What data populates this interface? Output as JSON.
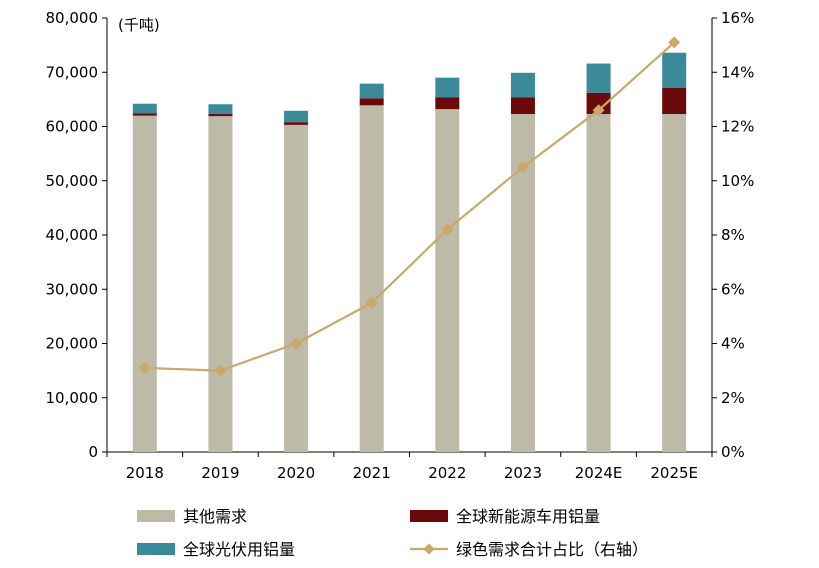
{
  "chart_data": {
    "type": "bar",
    "stacked": true,
    "unit_label": "(千吨)",
    "categories": [
      "2018",
      "2019",
      "2020",
      "2021",
      "2022",
      "2023",
      "2024E",
      "2025E"
    ],
    "series": [
      {
        "name": "其他需求",
        "type": "bar",
        "axis": "left",
        "color": "#bdbaa7",
        "values": [
          62000,
          61900,
          60300,
          63900,
          63200,
          62300,
          62300,
          62300
        ]
      },
      {
        "name": "全球新能源车用铝量",
        "type": "bar",
        "axis": "left",
        "color": "#6b0a0a",
        "values": [
          400,
          400,
          500,
          1300,
          2200,
          3100,
          3900,
          4800
        ]
      },
      {
        "name": "全球光伏用铝量",
        "type": "bar",
        "axis": "left",
        "color": "#3a8a9a",
        "values": [
          1800,
          1800,
          2100,
          2700,
          3600,
          4500,
          5400,
          6500
        ]
      },
      {
        "name": "绿色需求合计占比（右轴）",
        "type": "line",
        "axis": "right",
        "color": "#c9a86a",
        "values": [
          3.1,
          3.0,
          4.0,
          5.5,
          8.2,
          10.5,
          12.6,
          15.1
        ]
      }
    ],
    "y_left": {
      "min": 0,
      "max": 80000,
      "step": 10000,
      "tick_labels": [
        "0",
        "10,000",
        "20,000",
        "30,000",
        "40,000",
        "50,000",
        "60,000",
        "70,000",
        "80,000"
      ]
    },
    "y_right": {
      "min": 0,
      "max": 16,
      "step": 2,
      "tick_labels": [
        "0%",
        "2%",
        "4%",
        "6%",
        "8%",
        "10%",
        "12%",
        "14%",
        "16%"
      ]
    },
    "grid": false,
    "legend_position": "bottom"
  }
}
